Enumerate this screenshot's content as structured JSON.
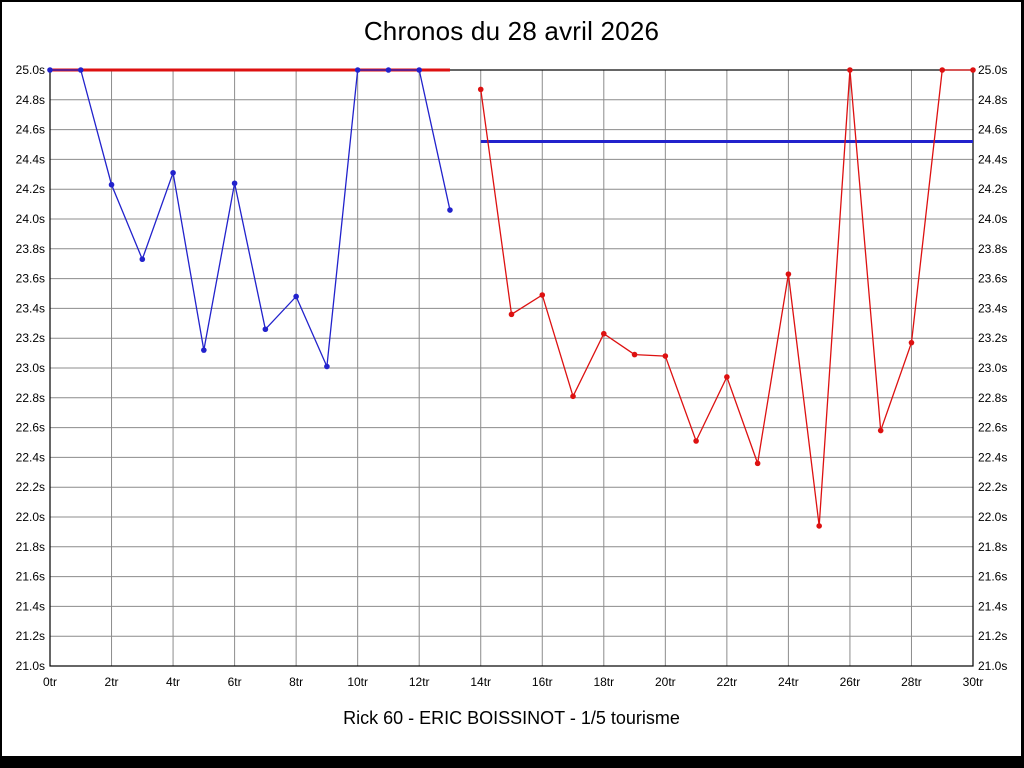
{
  "page": {
    "background": "#ffffff",
    "frame_color": "#000000"
  },
  "chart_data": {
    "type": "line",
    "title": "Chronos du 28 avril 2026",
    "subtitle": "Rick 60 - ERIC BOISSINOT - 1/5 tourisme",
    "x_unit": "tr",
    "y_unit": "s",
    "x_min": 0,
    "x_max": 30,
    "x_tick_step": 2,
    "y_min": 21.0,
    "y_max": 25.0,
    "y_tick_step": 0.2,
    "grid": true,
    "grid_color": "#8c8c8c",
    "axis_color": "#000000",
    "legend": "none",
    "x_tick_labels": [
      "0tr",
      "2tr",
      "4tr",
      "6tr",
      "8tr",
      "10tr",
      "12tr",
      "14tr",
      "16tr",
      "18tr",
      "20tr",
      "22tr",
      "24tr",
      "26tr",
      "28tr",
      "30tr"
    ],
    "y_tick_labels": [
      "25.0s",
      "24.8s",
      "24.6s",
      "24.4s",
      "24.2s",
      "24.0s",
      "23.8s",
      "23.6s",
      "23.4s",
      "23.2s",
      "23.0s",
      "22.8s",
      "22.6s",
      "22.4s",
      "22.2s",
      "22.0s",
      "21.8s",
      "21.6s",
      "21.4s",
      "21.2s",
      "21.0s"
    ],
    "series": [
      {
        "name": "lap-times-blue-segment",
        "color": "#2222cc",
        "x": [
          0,
          1,
          2,
          3,
          4,
          5,
          6,
          7,
          8,
          9,
          10,
          11,
          12,
          13
        ],
        "values": [
          25.0,
          25.0,
          24.23,
          23.73,
          24.31,
          23.12,
          24.24,
          23.26,
          23.48,
          23.01,
          25.0,
          25.0,
          25.0,
          24.06
        ]
      },
      {
        "name": "lap-times-red-segment",
        "color": "#dd1111",
        "x": [
          14,
          15,
          16,
          17,
          18,
          19,
          20,
          21,
          22,
          23,
          24,
          25,
          26,
          27,
          28,
          29,
          30
        ],
        "values": [
          24.87,
          23.36,
          23.49,
          22.81,
          23.23,
          23.09,
          23.08,
          22.51,
          22.94,
          22.36,
          23.63,
          21.94,
          25.0,
          22.58,
          23.17,
          25.0,
          25.0
        ]
      }
    ],
    "reference_lines": [
      {
        "name": "red-reference-line",
        "color": "#dd1111",
        "y": 25.0,
        "x_start": 0,
        "x_end": 13
      },
      {
        "name": "blue-reference-line",
        "color": "#2222cc",
        "y": 24.52,
        "x_start": 14,
        "x_end": 30
      }
    ]
  }
}
